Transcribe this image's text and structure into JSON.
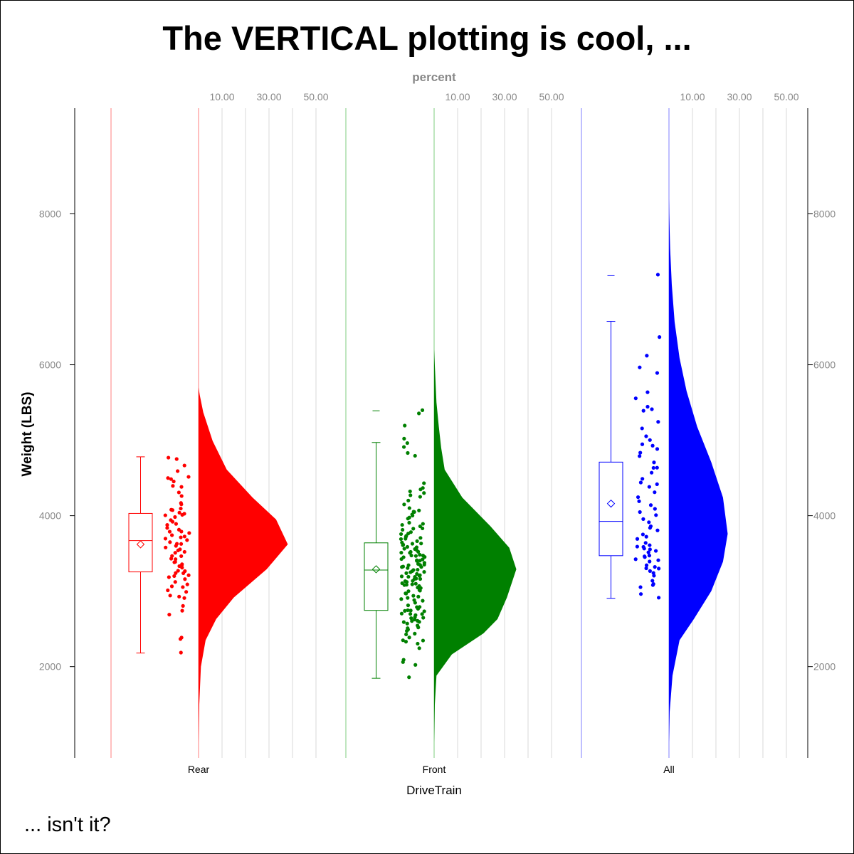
{
  "chart_data": {
    "type": "raincloud",
    "title": "The VERTICAL plotting is cool, ...",
    "footnote": "... isn't it?",
    "xlabel": "DriveTrain",
    "ylabel": "Weight (LBS)",
    "x2label": "percent",
    "ylim": [
      790,
      9400
    ],
    "yticks": [
      "2000",
      "4000",
      "6000",
      "8000"
    ],
    "ytick_values": [
      2000,
      4000,
      6000,
      8000
    ],
    "percent_ticks": [
      "10.00",
      "30.00",
      "50.00"
    ],
    "percent_tick_values": [
      10,
      30,
      50
    ],
    "percent_grid": [
      10,
      20,
      30,
      40,
      50
    ],
    "grid": true,
    "groups": [
      {
        "name": "Rear",
        "color": "#ff0000",
        "panel_line_color": "#ffaaaa",
        "box": {
          "min": 2180,
          "q1": 3255,
          "median": 3670,
          "q3": 4030,
          "max": 4780,
          "mean": 3620,
          "outliers": []
        },
        "density": [
          [
            1000,
            0
          ],
          [
            1500,
            0.3
          ],
          [
            2000,
            1
          ],
          [
            2350,
            3
          ],
          [
            2630,
            7.5
          ],
          [
            2915,
            15
          ],
          [
            3290,
            29
          ],
          [
            3620,
            38
          ],
          [
            3950,
            33
          ],
          [
            4240,
            23
          ],
          [
            4610,
            12
          ],
          [
            4990,
            6
          ],
          [
            5370,
            2
          ],
          [
            5600,
            0.5
          ],
          [
            5700,
            0
          ]
        ],
        "points": [
          2180,
          2380,
          2390,
          2700,
          2750,
          2800,
          2900,
          2920,
          2950,
          3000,
          3010,
          3050,
          3060,
          3100,
          3120,
          3150,
          3180,
          3200,
          3210,
          3230,
          3250,
          3260,
          3280,
          3300,
          3320,
          3340,
          3350,
          3380,
          3400,
          3410,
          3420,
          3450,
          3460,
          3500,
          3520,
          3550,
          3560,
          3580,
          3600,
          3620,
          3640,
          3650,
          3680,
          3700,
          3710,
          3730,
          3750,
          3770,
          3790,
          3800,
          3820,
          3850,
          3870,
          3900,
          3930,
          3950,
          3980,
          4000,
          4020,
          4040,
          4050,
          4060,
          4080,
          4100,
          4150,
          4180,
          4250,
          4300,
          4380,
          4400,
          4450,
          4480,
          4500,
          4520,
          4600,
          4660,
          4750,
          4780
        ]
      },
      {
        "name": "Front",
        "color": "#008000",
        "panel_line_color": "#aaddaa",
        "box": {
          "min": 1845,
          "q1": 2745,
          "median": 3280,
          "q3": 3640,
          "max": 4970,
          "mean": 3290,
          "outliers": [
            5390
          ]
        },
        "density": [
          [
            1000,
            0
          ],
          [
            1500,
            0.3
          ],
          [
            1880,
            1
          ],
          [
            2160,
            7.5
          ],
          [
            2440,
            21
          ],
          [
            2630,
            27
          ],
          [
            2915,
            31
          ],
          [
            3290,
            35
          ],
          [
            3575,
            32
          ],
          [
            3860,
            24
          ],
          [
            4240,
            12
          ],
          [
            4610,
            4.5
          ],
          [
            4900,
            3
          ],
          [
            5180,
            2
          ],
          [
            5500,
            1
          ],
          [
            6200,
            0
          ]
        ],
        "points": [
          1845,
          2020,
          2050,
          2080,
          2250,
          2300,
          2330,
          2340,
          2360,
          2400,
          2420,
          2450,
          2480,
          2500,
          2510,
          2520,
          2550,
          2560,
          2580,
          2590,
          2600,
          2610,
          2620,
          2640,
          2650,
          2660,
          2680,
          2690,
          2700,
          2710,
          2720,
          2740,
          2750,
          2760,
          2780,
          2790,
          2800,
          2820,
          2850,
          2870,
          2880,
          2900,
          2920,
          2940,
          2950,
          2960,
          2980,
          3000,
          3010,
          3020,
          3040,
          3050,
          3060,
          3070,
          3080,
          3090,
          3100,
          3110,
          3120,
          3130,
          3140,
          3150,
          3160,
          3170,
          3180,
          3190,
          3200,
          3210,
          3220,
          3230,
          3240,
          3250,
          3260,
          3270,
          3280,
          3290,
          3300,
          3310,
          3320,
          3330,
          3340,
          3350,
          3360,
          3370,
          3380,
          3390,
          3400,
          3410,
          3420,
          3430,
          3440,
          3450,
          3460,
          3470,
          3480,
          3490,
          3500,
          3510,
          3520,
          3530,
          3540,
          3550,
          3560,
          3570,
          3580,
          3600,
          3610,
          3620,
          3640,
          3650,
          3660,
          3680,
          3700,
          3710,
          3720,
          3740,
          3750,
          3760,
          3780,
          3800,
          3820,
          3840,
          3850,
          3870,
          3900,
          3920,
          3950,
          3980,
          4000,
          4020,
          4040,
          4060,
          4080,
          4100,
          4150,
          4200,
          4250,
          4280,
          4300,
          4320,
          4350,
          4380,
          4420,
          4800,
          4830,
          4920,
          4950,
          5030,
          5180,
          5350,
          5390
        ]
      },
      {
        "name": "All",
        "color": "#0000ff",
        "panel_line_color": "#aaaaff",
        "box": {
          "min": 2905,
          "q1": 3470,
          "median": 3925,
          "q3": 4710,
          "max": 6575,
          "mean": 4160,
          "outliers": [
            7180
          ]
        },
        "density": [
          [
            1000,
            0
          ],
          [
            1400,
            0.3
          ],
          [
            1880,
            1.5
          ],
          [
            2350,
            4.5
          ],
          [
            2630,
            10.6
          ],
          [
            3000,
            18
          ],
          [
            3390,
            23
          ],
          [
            3760,
            25
          ],
          [
            4240,
            23
          ],
          [
            4710,
            18
          ],
          [
            5180,
            12
          ],
          [
            5650,
            7.5
          ],
          [
            6090,
            4.5
          ],
          [
            6570,
            2.4
          ],
          [
            7060,
            1.2
          ],
          [
            7540,
            0.5
          ],
          [
            8000,
            0.1
          ],
          [
            8200,
            0
          ]
        ],
        "points": [
          2910,
          2960,
          3050,
          3080,
          3100,
          3150,
          3200,
          3230,
          3260,
          3290,
          3300,
          3330,
          3350,
          3380,
          3400,
          3420,
          3440,
          3460,
          3480,
          3500,
          3520,
          3540,
          3560,
          3580,
          3600,
          3620,
          3650,
          3700,
          3720,
          3760,
          3800,
          3830,
          3860,
          3900,
          3950,
          4000,
          4050,
          4100,
          4150,
          4200,
          4250,
          4300,
          4380,
          4420,
          4450,
          4500,
          4580,
          4620,
          4650,
          4700,
          4780,
          4830,
          4880,
          4920,
          4950,
          5000,
          5050,
          5150,
          5250,
          5380,
          5420,
          5450,
          5550,
          5650,
          5900,
          5970,
          6120,
          6380,
          7180
        ]
      }
    ]
  }
}
